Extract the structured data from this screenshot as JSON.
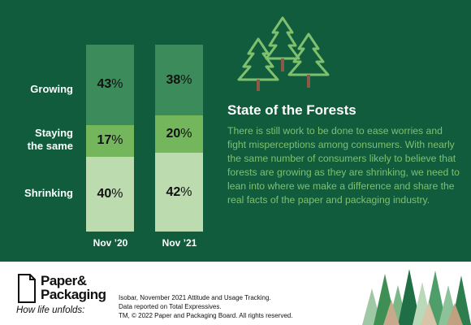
{
  "chart_data": {
    "type": "bar",
    "stacked": true,
    "categories": [
      "Nov ’20",
      "Nov ’21"
    ],
    "series": [
      {
        "name": "Shrinking",
        "values": [
          40,
          42
        ],
        "color": "#bcdcb0"
      },
      {
        "name": "Staying the same",
        "values": [
          17,
          20
        ],
        "color": "#74b65c"
      },
      {
        "name": "Growing",
        "values": [
          43,
          38
        ],
        "color": "#3b8c5a"
      }
    ],
    "row_labels": [
      "Growing",
      "Staying\nthe same",
      "Shrinking"
    ]
  },
  "panel": {
    "title": "State of the Forests",
    "body": "There is still work to be done to ease worries and fight misperceptions among consumers. With nearly the same number of consumers likely to believe that forests are growing as they are shrinking, we need to lean into where we make a difference and share the real facts of the paper and packaging industry."
  },
  "footer": {
    "logo_line1": "Paper&",
    "logo_line2": "Packaging",
    "tagline": "How life unfolds:",
    "source_line1": "Isobar, November 2021 Attitude and Usage Tracking.",
    "source_line2": "Data reported on Total Expressives.",
    "source_line3": "TM, © 2022 Paper and Packaging Board. All rights reserved."
  },
  "colors": {
    "background": "#105c3d",
    "tree_outline": "#7fc06f",
    "trunk": "#8a5a44",
    "body_text": "#7fc06f"
  },
  "icons": [
    "pine-trees-icon",
    "paper-fold-logo-icon",
    "forest-illustration"
  ]
}
